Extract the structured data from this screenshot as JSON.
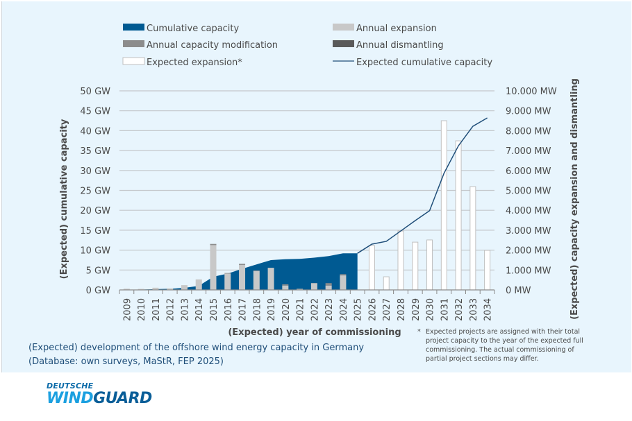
{
  "chart_data": {
    "type": "bar",
    "title": "(Expected) development of the offshore wind energy capacity in Germany",
    "subtitle": "(Database: own surveys, MaStR, FEP 2025)",
    "xlabel": "(Expected) year of commissioning",
    "ylabel_left": "(Expected) cumulative capacity",
    "ylabel_right": "(Expected) capacity expansion and dismantling",
    "categories": [
      "2009",
      "2010",
      "2011",
      "2012",
      "2013",
      "2014",
      "2015",
      "2016",
      "2017",
      "2018",
      "2019",
      "2020",
      "2021",
      "2022",
      "2023",
      "2024",
      "2025",
      "2026",
      "2027",
      "2028",
      "2029",
      "2030",
      "2031",
      "2032",
      "2033",
      "2034"
    ],
    "ylim_left": [
      0,
      50
    ],
    "ylim_right": [
      0,
      10000
    ],
    "yticks_left": [
      "0 GW",
      "5 GW",
      "10 GW",
      "15 GW",
      "20 GW",
      "25 GW",
      "30 GW",
      "35 GW",
      "40 GW",
      "45 GW",
      "50 GW"
    ],
    "yticks_right": [
      "0 MW",
      "1.000 MW",
      "2.000 MW",
      "3.000 MW",
      "4.000 MW",
      "5.000 MW",
      "6.000 MW",
      "7.000 MW",
      "8.000 MW",
      "9.000 MW",
      "10.000 MW"
    ],
    "grid": true,
    "series": [
      {
        "name": "Cumulative capacity",
        "type": "area",
        "axis": "left",
        "unit": "GW",
        "color": "#005a92",
        "values": [
          0.03,
          0.08,
          0.2,
          0.28,
          0.52,
          1.0,
          3.3,
          4.1,
          5.3,
          6.4,
          7.5,
          7.7,
          7.8,
          8.1,
          8.5,
          9.2,
          9.2,
          null,
          null,
          null,
          null,
          null,
          null,
          null,
          null,
          null
        ]
      },
      {
        "name": "Annual expansion",
        "type": "bar",
        "axis": "right",
        "unit": "MW",
        "color": "#c8c8c8",
        "values": [
          60,
          50,
          110,
          80,
          240,
          530,
          2250,
          820,
          1250,
          950,
          1110,
          220,
          50,
          340,
          220,
          730,
          0,
          null,
          null,
          null,
          null,
          null,
          null,
          null,
          null,
          null
        ]
      },
      {
        "name": "Annual capacity modification",
        "type": "bar",
        "axis": "right",
        "unit": "MW",
        "color": "#8c8c8c",
        "values": [
          0,
          0,
          0,
          0,
          0,
          0,
          60,
          30,
          60,
          30,
          0,
          60,
          10,
          10,
          120,
          60,
          0,
          null,
          null,
          null,
          null,
          null,
          null,
          null,
          null,
          null
        ]
      },
      {
        "name": "Annual dismantling",
        "type": "bar",
        "axis": "right",
        "unit": "MW",
        "color": "#5a5a5a",
        "values": [
          0,
          0,
          0,
          0,
          0,
          0,
          0,
          0,
          0,
          0,
          0,
          0,
          0,
          0,
          0,
          0,
          0,
          null,
          null,
          null,
          null,
          null,
          null,
          null,
          null,
          null
        ]
      },
      {
        "name": "Expected expansion*",
        "type": "bar",
        "axis": "right",
        "unit": "MW",
        "color": "#ffffff",
        "values": [
          null,
          null,
          null,
          null,
          null,
          null,
          null,
          null,
          null,
          null,
          null,
          null,
          null,
          null,
          null,
          null,
          null,
          2230,
          660,
          2960,
          2400,
          2510,
          8500,
          7490,
          5190,
          1990
        ]
      },
      {
        "name": "Expected cumulative capacity",
        "type": "line",
        "axis": "left",
        "unit": "GW",
        "color": "#1f4e79",
        "values": [
          null,
          null,
          null,
          null,
          null,
          null,
          null,
          null,
          null,
          null,
          null,
          null,
          null,
          null,
          null,
          null,
          9.2,
          11.5,
          12.2,
          14.8,
          17.4,
          19.9,
          29.3,
          36.2,
          41.1,
          43.2
        ]
      }
    ],
    "legend": {
      "position": "top",
      "entries": [
        {
          "label": "Cumulative capacity",
          "kind": "area",
          "color": "#005a92"
        },
        {
          "label": "Annual expansion",
          "kind": "bar",
          "color": "#c8c8c8"
        },
        {
          "label": "Annual capacity modification",
          "kind": "bar",
          "color": "#8c8c8c"
        },
        {
          "label": "Annual dismantling",
          "kind": "bar",
          "color": "#5a5a5a"
        },
        {
          "label": "Expected expansion*",
          "kind": "outline",
          "color": "#ffffff"
        },
        {
          "label": "Expected cumulative capacity",
          "kind": "line",
          "color": "#1f4e79"
        }
      ]
    },
    "footnote": "Expected projects are assigned with their total project capacity to the year of the expected full commissioning. The actual commissioning of partial project sections may differ."
  },
  "caption": {
    "line1": "(Expected) development of the offshore wind energy capacity in Germany",
    "line2": "(Database: own surveys, MaStR, FEP 2025)"
  },
  "footnote": {
    "star": "*",
    "text": "Expected projects are assigned with their total project capacity to the year of the expected full commissioning. The actual commissioning of partial project sections may differ."
  },
  "logo": {
    "line1": "DEUTSCHE",
    "line2a": "WIND",
    "line2b": "GUARD"
  }
}
